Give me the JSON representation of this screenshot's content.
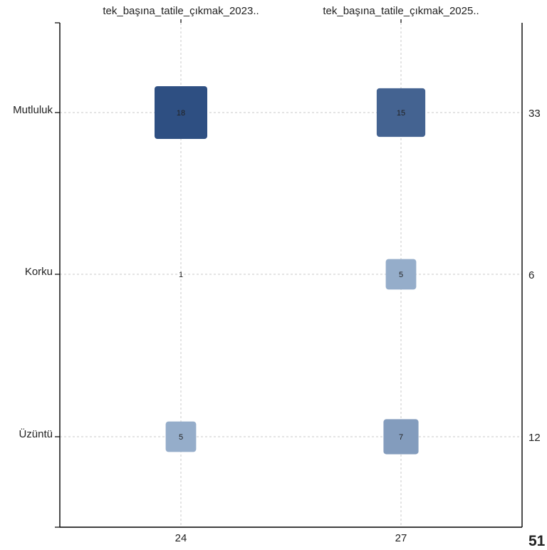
{
  "chart_data": {
    "type": "heatmap",
    "x_categories": [
      "tek_başına_tatile_çıkmak_2023..",
      "tek_başına_tatile_çıkmak_2025.."
    ],
    "y_categories": [
      "Mutluluk",
      "Korku",
      "Üzüntü"
    ],
    "values": [
      [
        18,
        15
      ],
      [
        1,
        5
      ],
      [
        5,
        7
      ]
    ],
    "column_totals": [
      24,
      27
    ],
    "row_totals": [
      33,
      6,
      12
    ],
    "grand_total": 51,
    "grid": true,
    "colors": {
      "low": "#cfe1f2",
      "high": "#2e4f82",
      "axis": "#000000",
      "grid": "#c8c8c8"
    }
  }
}
